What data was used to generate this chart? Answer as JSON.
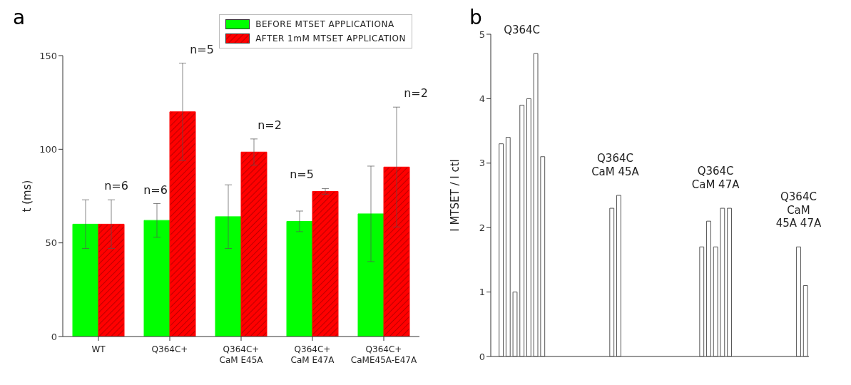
{
  "chart_data": [
    {
      "type": "bar",
      "title": "a",
      "ylabel": "t (ms)",
      "categories": [
        "WT",
        "Q364C+",
        "Q364C+\nCaM E45A",
        "Q364C+\nCaM E47A",
        "Q364C+\nCaME45A-E47A"
      ],
      "series": [
        {
          "name": "BEFORE MTSET APPLICATIONA",
          "color": "#00ff00",
          "values": [
            60,
            62,
            64,
            61.5,
            65.5
          ],
          "errors": [
            13,
            9,
            17,
            5.5,
            25.5
          ]
        },
        {
          "name": "AFTER 1mM MTSET APPLICATION",
          "color": "#ff0000",
          "values": [
            60,
            120,
            98.5,
            77.5,
            90.5
          ],
          "errors": [
            13,
            26,
            7,
            1.5,
            32
          ]
        }
      ],
      "ylim": [
        0,
        150
      ],
      "yticks": [
        0,
        50,
        100,
        150
      ],
      "legend": "top right",
      "grid": false,
      "annotations": [
        "n=6",
        "n=6",
        "n=5",
        "n=2",
        "n=5",
        "n=2"
      ]
    },
    {
      "type": "bar",
      "title": "b",
      "ylabel": "I MTSET / I ctl",
      "categories": [
        null,
        null,
        null,
        null,
        null,
        null,
        null,
        null,
        null,
        null,
        null,
        null,
        null,
        null,
        null,
        null,
        null,
        null,
        null,
        null,
        null,
        null,
        null,
        null,
        null,
        null,
        null,
        null,
        null,
        null,
        null,
        null,
        null,
        null,
        null,
        null,
        null,
        null,
        null,
        null,
        null,
        null,
        null,
        null,
        null,
        null
      ],
      "values": [
        null,
        3.3,
        3.4,
        1.0,
        3.9,
        4.0,
        4.7,
        3.1,
        null,
        null,
        null,
        null,
        null,
        null,
        null,
        null,
        null,
        2.3,
        2.5,
        null,
        null,
        null,
        null,
        null,
        null,
        null,
        null,
        null,
        null,
        null,
        1.7,
        2.1,
        1.7,
        2.3,
        2.3,
        null,
        null,
        null,
        null,
        null,
        null,
        null,
        null,
        null,
        1.7,
        1.1
      ],
      "color": "#ffffff",
      "ylim": [
        0,
        5
      ],
      "yticks": [
        0,
        1,
        2,
        3,
        4,
        5
      ],
      "tick_labels": "y",
      "grid": false,
      "annotations": [
        "Q364C",
        "Q364C\nCaM 45A",
        "Q364C\nCaM 47A",
        "Q364C\nCaM\n45A 47A"
      ]
    }
  ]
}
